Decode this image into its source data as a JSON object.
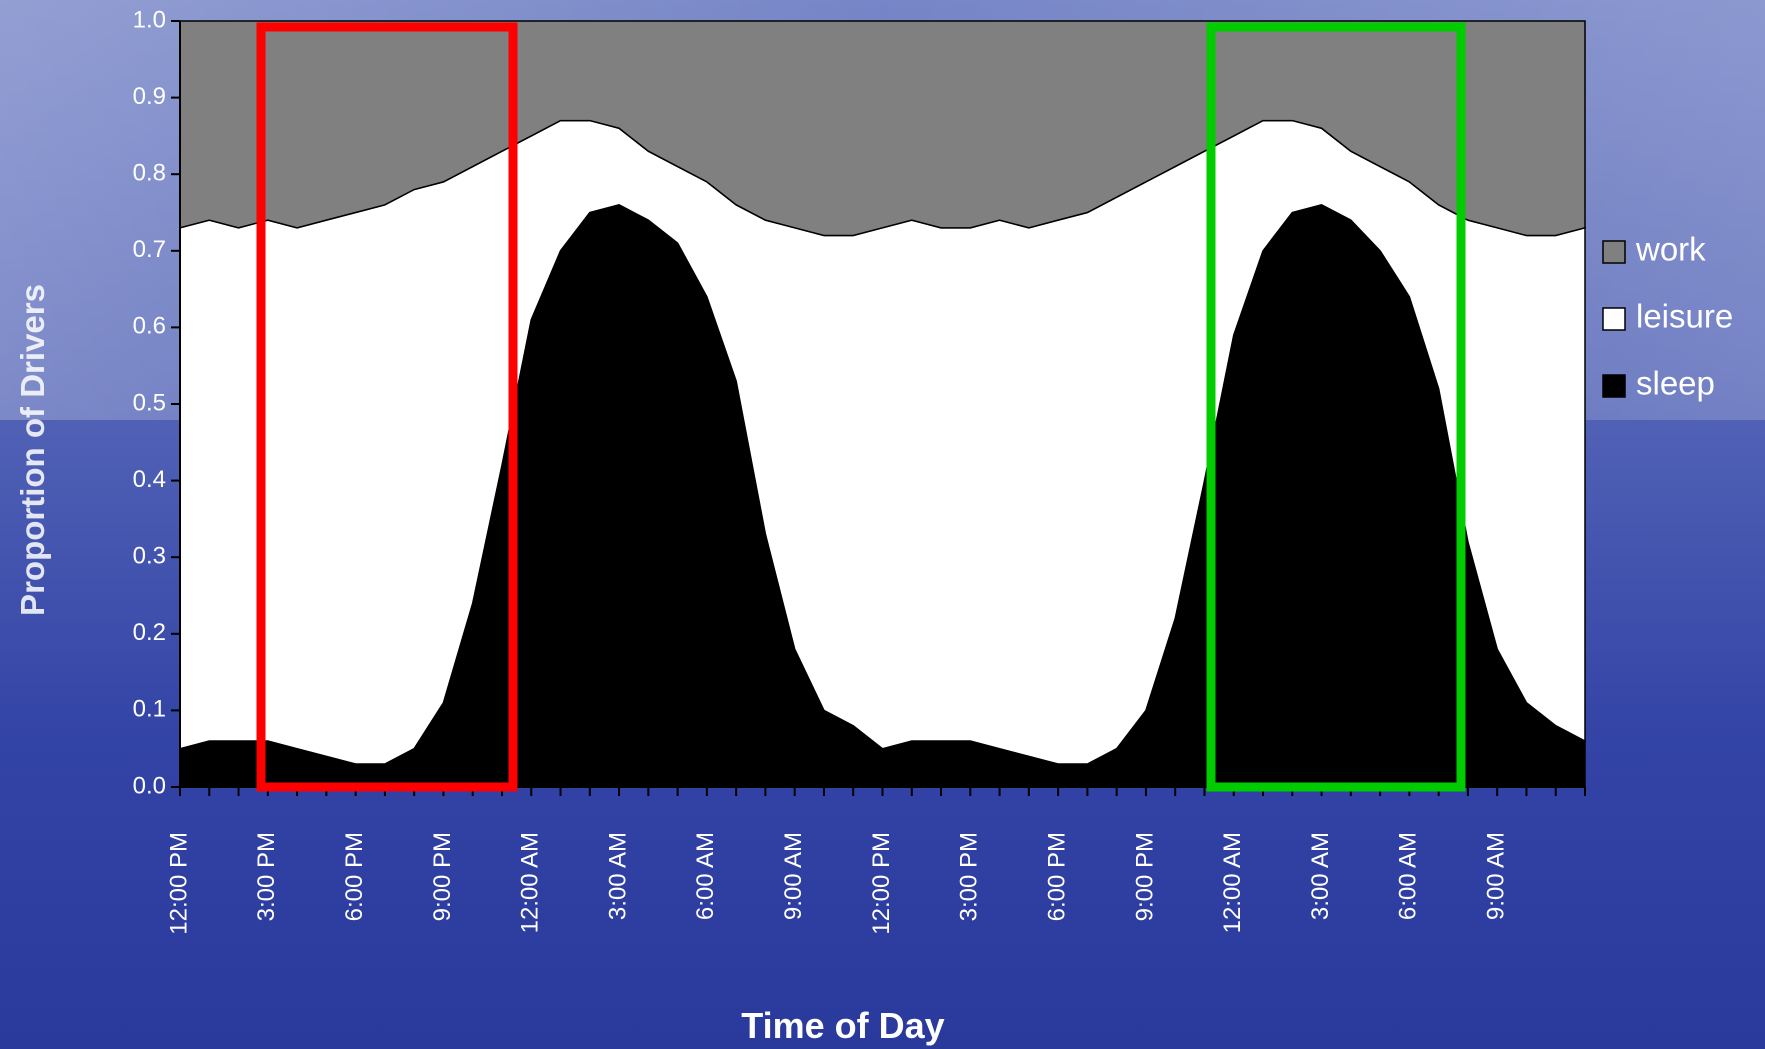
{
  "chart_data": {
    "type": "stacked-area",
    "x_label": "Time of Day",
    "y_label": "Proportion of Drivers",
    "categories": [
      "12:00 PM",
      null,
      null,
      "3:00 PM",
      null,
      null,
      "6:00 PM",
      null,
      null,
      "9:00 PM",
      null,
      null,
      "12:00 AM",
      null,
      null,
      "3:00 AM",
      null,
      null,
      "6:00 AM",
      null,
      null,
      "9:00 AM",
      null,
      null,
      "12:00 PM",
      null,
      null,
      "3:00 PM",
      null,
      null,
      "6:00 PM",
      null,
      null,
      "9:00 PM",
      null,
      null,
      "12:00 AM",
      null,
      null,
      "3:00 AM",
      null,
      null,
      "6:00 AM",
      null,
      null,
      "9:00 AM",
      null,
      null,
      null
    ],
    "series": [
      {
        "name": "sleep",
        "color": "#000000",
        "values": [
          0.05,
          0.06,
          0.06,
          0.06,
          0.05,
          0.04,
          0.03,
          0.03,
          0.05,
          0.11,
          0.24,
          0.42,
          0.61,
          0.7,
          0.75,
          0.76,
          0.74,
          0.71,
          0.64,
          0.53,
          0.33,
          0.18,
          0.1,
          0.08,
          0.05,
          0.06,
          0.06,
          0.06,
          0.05,
          0.04,
          0.03,
          0.03,
          0.05,
          0.1,
          0.22,
          0.4,
          0.59,
          0.7,
          0.75,
          0.76,
          0.74,
          0.7,
          0.64,
          0.52,
          0.32,
          0.18,
          0.11,
          0.08,
          0.06
        ]
      },
      {
        "name": "leisure",
        "color": "#ffffff",
        "values": [
          0.68,
          0.68,
          0.67,
          0.68,
          0.68,
          0.7,
          0.72,
          0.73,
          0.73,
          0.68,
          0.57,
          0.41,
          0.24,
          0.17,
          0.12,
          0.1,
          0.09,
          0.1,
          0.15,
          0.23,
          0.41,
          0.55,
          0.62,
          0.64,
          0.68,
          0.68,
          0.67,
          0.67,
          0.69,
          0.69,
          0.71,
          0.72,
          0.72,
          0.69,
          0.59,
          0.43,
          0.26,
          0.17,
          0.12,
          0.1,
          0.09,
          0.11,
          0.15,
          0.24,
          0.42,
          0.55,
          0.61,
          0.64,
          0.67
        ]
      },
      {
        "name": "work",
        "color": "#808080",
        "values": [
          0.27,
          0.26,
          0.27,
          0.26,
          0.27,
          0.26,
          0.25,
          0.24,
          0.22,
          0.21,
          0.19,
          0.17,
          0.15,
          0.13,
          0.13,
          0.14,
          0.17,
          0.19,
          0.21,
          0.24,
          0.26,
          0.27,
          0.28,
          0.28,
          0.27,
          0.26,
          0.27,
          0.27,
          0.26,
          0.27,
          0.26,
          0.25,
          0.23,
          0.21,
          0.19,
          0.17,
          0.15,
          0.13,
          0.13,
          0.14,
          0.17,
          0.19,
          0.21,
          0.24,
          0.26,
          0.27,
          0.28,
          0.28,
          0.27
        ]
      }
    ],
    "ylim": [
      0,
      1
    ],
    "yticks": [
      {
        "value": 0,
        "label": "0.0"
      },
      0.1,
      0.2,
      0.3,
      0.4,
      0.5,
      0.6,
      0.7,
      0.8,
      0.9,
      {
        "value": 1,
        "label": "1.0"
      }
    ],
    "legend": "right"
  }
}
